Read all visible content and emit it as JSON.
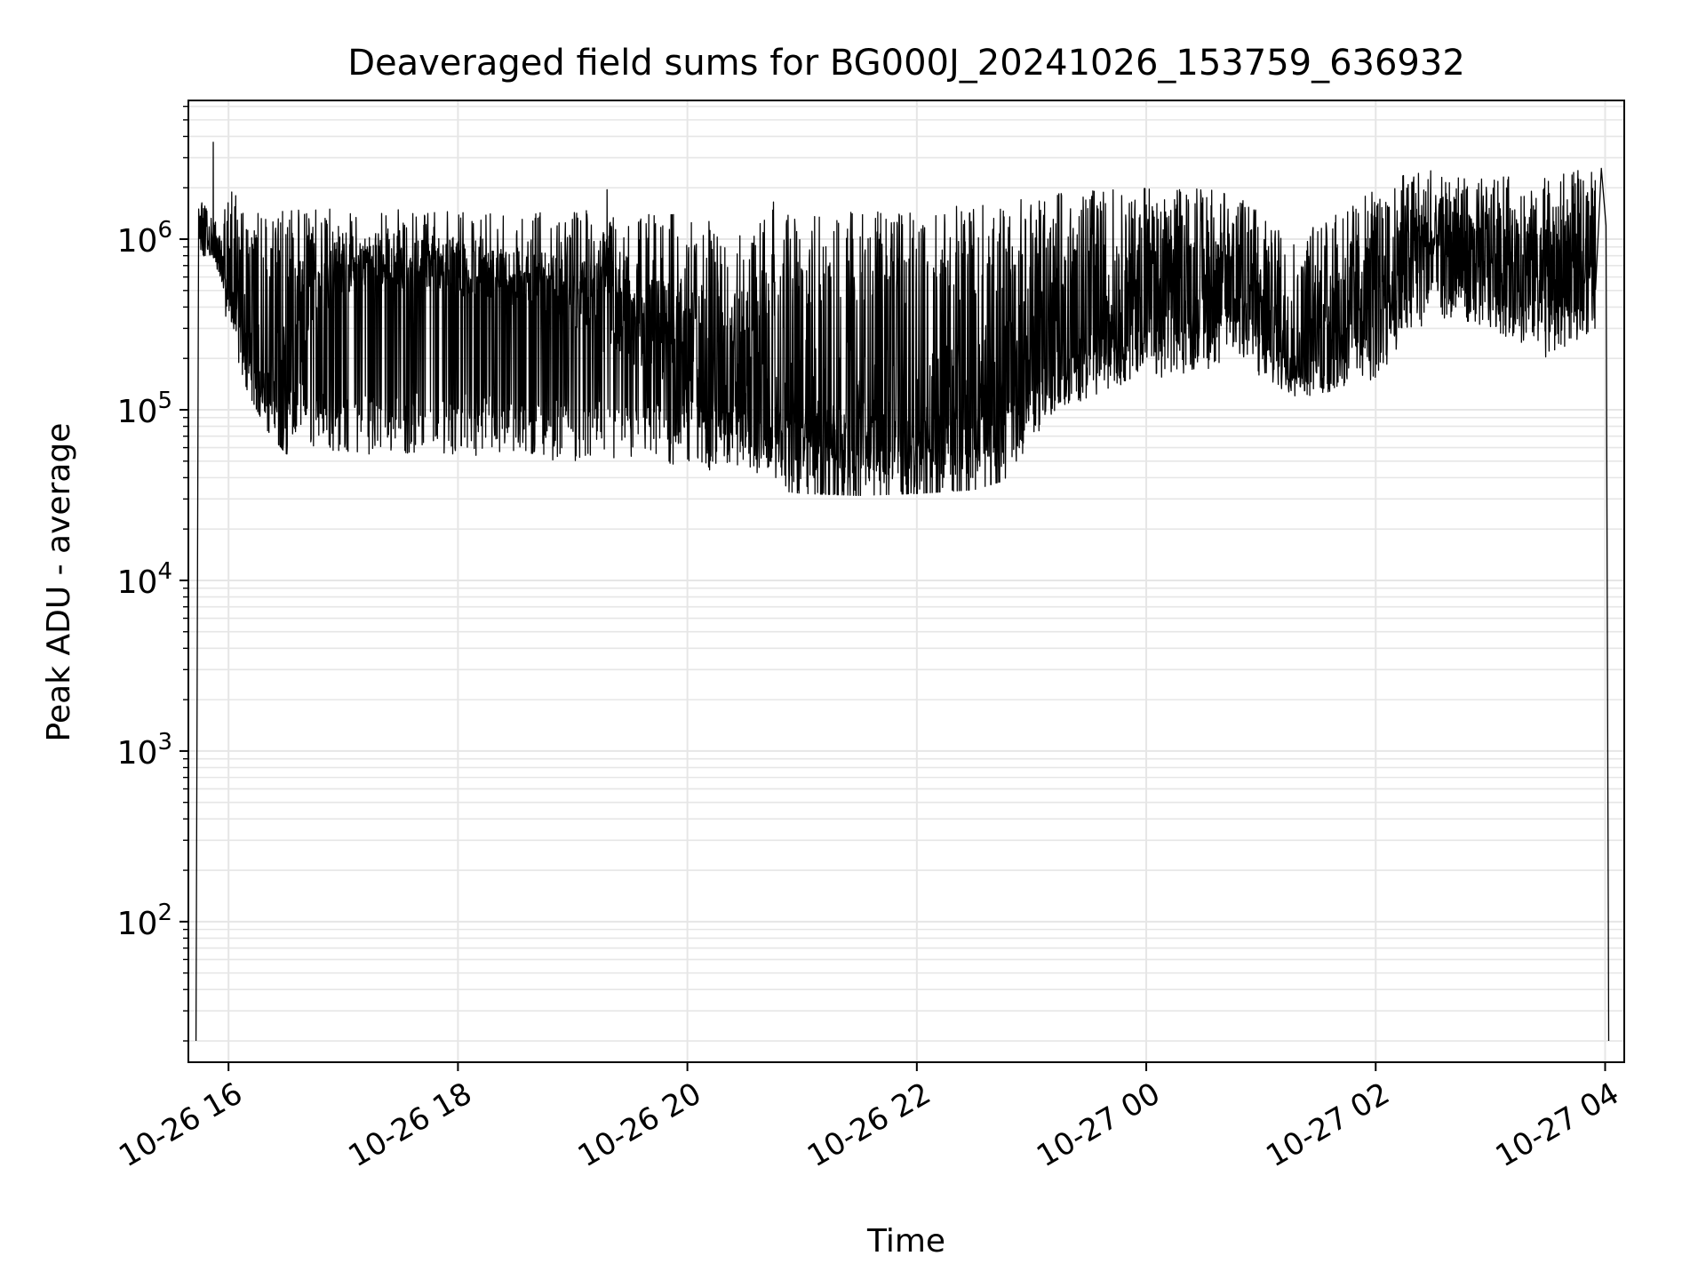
{
  "chart_data": {
    "type": "line",
    "title": "Deaveraged field sums for BG000J_20241026_153759_636932",
    "xlabel": "Time",
    "ylabel": "Peak ADU - average",
    "yscale": "log",
    "ylim": [
      15,
      6500000
    ],
    "xlim": [
      "2024-10-26 15:39",
      "2024-10-27 04:10"
    ],
    "grid": true,
    "line_color": "#000000",
    "grid_color": "#e6e6e6",
    "x_ticks": [
      {
        "t": "2024-10-26 16:00",
        "label": "10-26 16"
      },
      {
        "t": "2024-10-26 18:00",
        "label": "10-26 18"
      },
      {
        "t": "2024-10-26 20:00",
        "label": "10-26 20"
      },
      {
        "t": "2024-10-26 22:00",
        "label": "10-26 22"
      },
      {
        "t": "2024-10-27 00:00",
        "label": "10-27 00"
      },
      {
        "t": "2024-10-27 02:00",
        "label": "10-27 02"
      },
      {
        "t": "2024-10-27 04:00",
        "label": "10-27 04"
      }
    ],
    "y_ticks": [
      {
        "v": 100,
        "base": "10",
        "exp": "2"
      },
      {
        "v": 1000,
        "base": "10",
        "exp": "3"
      },
      {
        "v": 10000,
        "base": "10",
        "exp": "4"
      },
      {
        "v": 100000,
        "base": "10",
        "exp": "5"
      },
      {
        "v": 1000000,
        "base": "10",
        "exp": "6"
      }
    ],
    "series": [
      {
        "envelope": {
          "t": [
            "2024-10-26 15:45",
            "2024-10-26 15:50",
            "2024-10-26 15:55",
            "2024-10-26 16:00",
            "2024-10-26 16:10",
            "2024-10-26 16:20",
            "2024-10-26 16:30",
            "2024-10-26 16:45",
            "2024-10-26 17:00",
            "2024-10-26 17:30",
            "2024-10-26 18:00",
            "2024-10-26 18:30",
            "2024-10-26 19:00",
            "2024-10-26 19:30",
            "2024-10-26 20:00",
            "2024-10-26 20:30",
            "2024-10-26 20:45",
            "2024-10-26 21:00",
            "2024-10-26 21:30",
            "2024-10-26 22:00",
            "2024-10-26 22:30",
            "2024-10-26 22:45",
            "2024-10-26 23:00",
            "2024-10-26 23:30",
            "2024-10-27 00:00",
            "2024-10-27 00:30",
            "2024-10-27 00:50",
            "2024-10-27 01:00",
            "2024-10-27 01:15",
            "2024-10-27 01:30",
            "2024-10-27 02:00",
            "2024-10-27 02:15",
            "2024-10-27 02:30",
            "2024-10-27 03:00",
            "2024-10-27 03:30",
            "2024-10-27 03:55"
          ],
          "low": [
            700000,
            800000,
            600000,
            350000,
            150000,
            90000,
            65000,
            60000,
            55000,
            55000,
            55000,
            52000,
            50000,
            48000,
            45000,
            42000,
            40000,
            38000,
            37000,
            38000,
            40000,
            45000,
            70000,
            120000,
            150000,
            170000,
            200000,
            150000,
            120000,
            110000,
            150000,
            250000,
            350000,
            300000,
            200000,
            300000
          ],
          "typical": [
            1100000,
            1000000,
            850000,
            500000,
            200000,
            120000,
            90000,
            500000,
            700000,
            750000,
            700000,
            600000,
            450000,
            350000,
            250000,
            150000,
            120000,
            70000,
            60000,
            60000,
            70000,
            100000,
            200000,
            300000,
            450000,
            600000,
            550000,
            350000,
            250000,
            300000,
            500000,
            800000,
            1000000,
            800000,
            600000,
            700000
          ],
          "high": [
            1800000,
            1500000,
            1400000,
            2000000,
            1600000,
            1400000,
            1500000,
            1500000,
            1500000,
            1500000,
            1450000,
            1450000,
            1500000,
            1400000,
            1400000,
            1300000,
            1600000,
            1400000,
            1500000,
            1500000,
            1600000,
            1700000,
            1800000,
            2000000,
            2100000,
            2000000,
            1800000,
            1400000,
            1100000,
            1200000,
            2000000,
            2500000,
            2600000,
            2300000,
            2400000,
            2600000
          ]
        },
        "start_drop": {
          "t": "2024-10-26 15:43",
          "value_from": 20,
          "value_to": 1500000
        },
        "end_drop": {
          "t": "2024-10-27 04:00",
          "value_from": 1200000,
          "value_to": 20
        },
        "spikes": [
          {
            "t": "2024-10-26 15:52",
            "value": 3700000
          },
          {
            "t": "2024-10-26 19:18",
            "value": 1950000
          },
          {
            "t": "2024-10-26 20:45",
            "value": 1650000
          },
          {
            "t": "2024-10-27 03:58",
            "value": 2600000
          }
        ]
      }
    ]
  }
}
